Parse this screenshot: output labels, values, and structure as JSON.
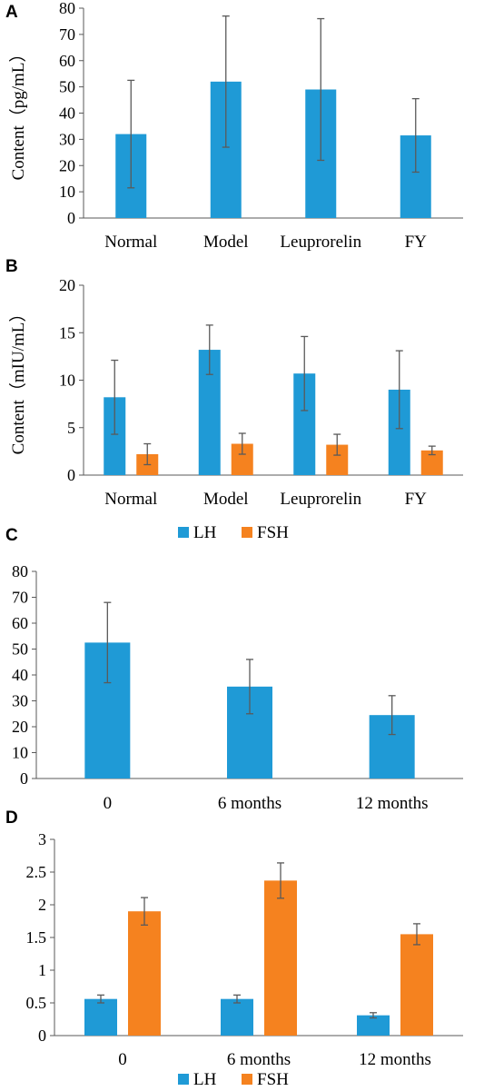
{
  "colors": {
    "LH": "#1f9ad6",
    "FSH": "#f5821f",
    "axis": "#595959",
    "error": "#5a5a5a"
  },
  "chart_data": [
    {
      "panel": "A",
      "type": "bar",
      "ylabel": "Content（pg/mL）",
      "ylim": [
        0,
        80
      ],
      "yticks": [
        "0",
        "10",
        "20",
        "30",
        "40",
        "50",
        "60",
        "70",
        "80"
      ],
      "categories": [
        "Normal",
        "Model",
        "Leuprorelin",
        "FY"
      ],
      "series": [
        {
          "color": "LH",
          "values": [
            32,
            52,
            49,
            31.5
          ],
          "errors": [
            20.5,
            25,
            27,
            14
          ]
        }
      ],
      "legend": []
    },
    {
      "panel": "B",
      "type": "bar",
      "ylabel": "Content（mIU/mL）",
      "ylim": [
        0,
        20
      ],
      "yticks": [
        "0",
        "5",
        "10",
        "15",
        "20"
      ],
      "categories": [
        "Normal",
        "Model",
        "Leuprorelin",
        "FY"
      ],
      "series": [
        {
          "name": "LH",
          "color": "LH",
          "values": [
            8.2,
            13.2,
            10.7,
            9.0
          ],
          "errors": [
            3.9,
            2.6,
            3.9,
            4.1
          ]
        },
        {
          "name": "FSH",
          "color": "FSH",
          "values": [
            2.2,
            3.3,
            3.2,
            2.6
          ],
          "errors": [
            1.1,
            1.1,
            1.1,
            0.45
          ]
        }
      ],
      "legend": [
        "LH",
        "FSH"
      ],
      "legend_position": "bottom"
    },
    {
      "panel": "C",
      "type": "bar",
      "ylabel": "",
      "ylim": [
        0,
        80
      ],
      "yticks": [
        "0",
        "10",
        "20",
        "30",
        "40",
        "50",
        "60",
        "70",
        "80"
      ],
      "categories": [
        "0",
        "6 months",
        "12 months"
      ],
      "series": [
        {
          "color": "LH",
          "values": [
            52.5,
            35.5,
            24.5
          ],
          "errors": [
            15.5,
            10.5,
            7.5
          ]
        }
      ],
      "legend": []
    },
    {
      "panel": "D",
      "type": "bar",
      "ylabel": "",
      "ylim": [
        0,
        3
      ],
      "yticks": [
        "0",
        "0.5",
        "1",
        "1.5",
        "2",
        "2.5",
        "3"
      ],
      "categories": [
        "0",
        "6 months",
        "12 months"
      ],
      "series": [
        {
          "name": "LH",
          "color": "LH",
          "values": [
            0.56,
            0.56,
            0.31
          ],
          "errors": [
            0.06,
            0.06,
            0.04
          ]
        },
        {
          "name": "FSH",
          "color": "FSH",
          "values": [
            1.9,
            2.37,
            1.55
          ],
          "errors": [
            0.21,
            0.27,
            0.16
          ]
        }
      ],
      "legend": [
        "LH",
        "FSH"
      ],
      "legend_position": "bottom"
    }
  ]
}
